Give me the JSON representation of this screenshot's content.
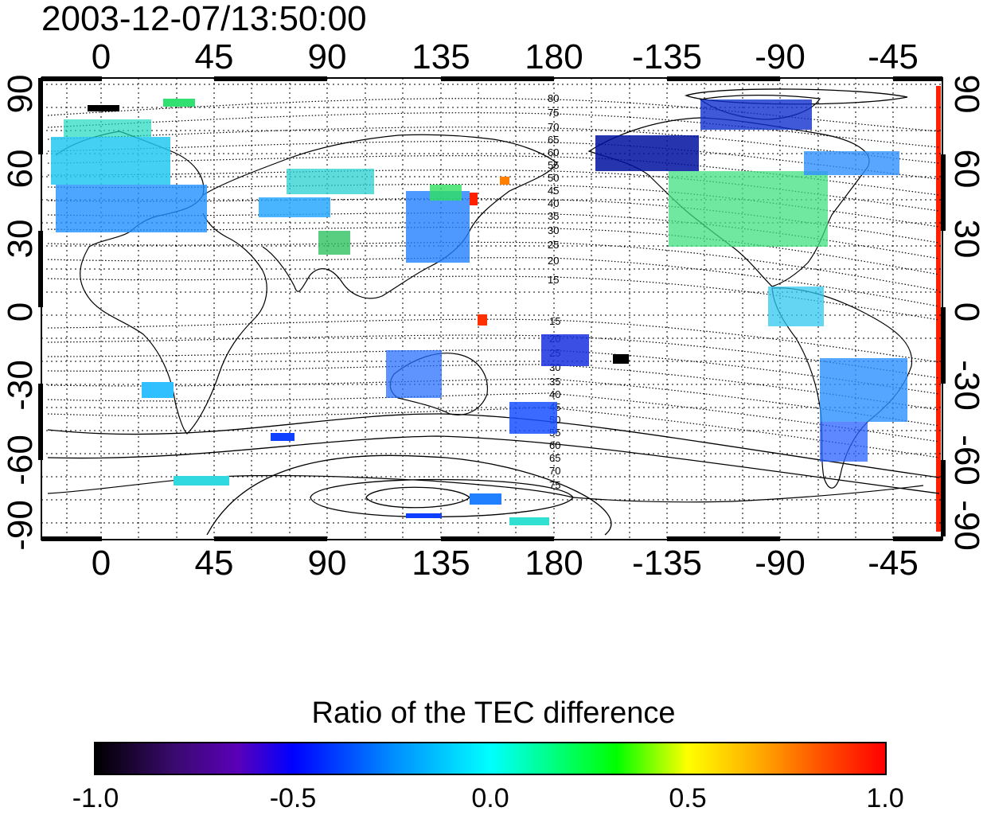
{
  "title": "2003-12-07/13:50:00",
  "x_ticks": [
    "0",
    "45",
    "90",
    "135",
    "180",
    "-135",
    "-90",
    "-45"
  ],
  "y_ticks_left": [
    "90",
    "60",
    "30",
    "0",
    "-30",
    "-60",
    "-90"
  ],
  "y_ticks_right": [
    "90",
    "60",
    "30",
    "0",
    "-30",
    "-60",
    "-90"
  ],
  "contour_labels_north": [
    "80",
    "75",
    "70",
    "65",
    "60",
    "55",
    "50",
    "45",
    "40",
    "35",
    "30",
    "25",
    "20",
    "15"
  ],
  "contour_labels_south": [
    "15",
    "20",
    "25",
    "30",
    "35",
    "40",
    "45",
    "50",
    "55",
    "60",
    "65",
    "70",
    "75"
  ],
  "colorbar": {
    "label": "Ratio of the TEC difference",
    "ticks": [
      "-1.0",
      "-0.5",
      "0.0",
      "0.5",
      "1.0"
    ]
  },
  "colors": {
    "scale": [
      "#000000",
      "#5a00b8",
      "#0000ff",
      "#00ffff",
      "#00ff00",
      "#ffff00",
      "#ff0000"
    ]
  }
}
